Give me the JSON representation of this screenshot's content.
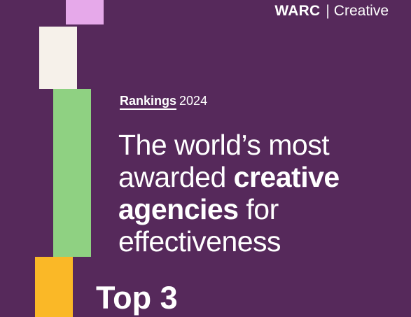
{
  "brand": {
    "name": "WARC",
    "separator": "|",
    "product": "Creative"
  },
  "rankings": {
    "label": "Rankings",
    "year": "2024"
  },
  "headline": {
    "line1": "The world’s most",
    "line2_plain": "awarded ",
    "line2_bold": "creative",
    "line3_bold": "agencies",
    "line3_plain": " for",
    "line4": "effectiveness"
  },
  "top_label": "Top 3",
  "colors": {
    "background": "#56295b",
    "lilac": "#e6a9ea",
    "cream": "#f6f1ea",
    "green": "#8fd182",
    "yellow": "#fab827",
    "text": "#ffffff"
  }
}
